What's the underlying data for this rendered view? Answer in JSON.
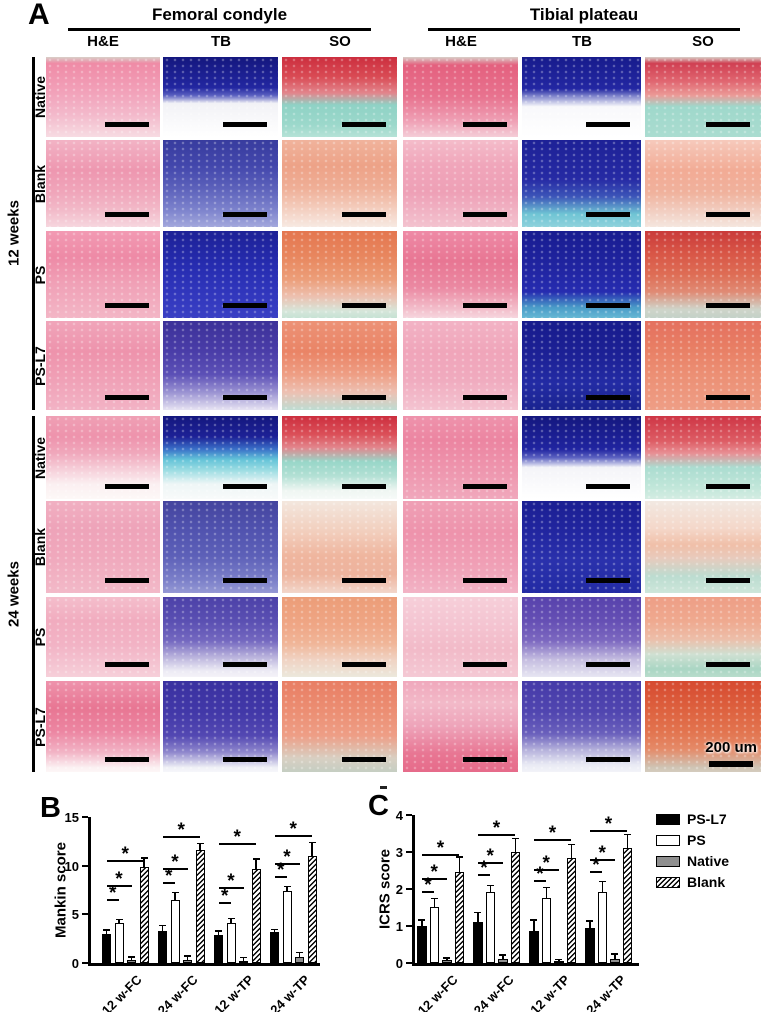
{
  "panel_a": {
    "label": "A",
    "region_headers": [
      {
        "label": "Femoral condyle"
      },
      {
        "label": "Tibial plateau"
      }
    ],
    "stain_headers": [
      "H&E",
      "TB",
      "SO",
      "H&E",
      "TB",
      "SO"
    ],
    "time_groups": [
      {
        "label": "12 weeks",
        "rows": [
          "Native",
          "Blank",
          "PS",
          "PS-L7"
        ]
      },
      {
        "label": "24 weeks",
        "rows": [
          "Native",
          "Blank",
          "PS",
          "PS-L7"
        ]
      }
    ],
    "scale_bar_label": "200 um",
    "tile_row_keys": [
      "12w-native",
      "12w-blank",
      "12w-ps",
      "12w-psl7",
      "24w-native",
      "24w-blank",
      "24w-ps",
      "24w-psl7"
    ],
    "tile_col_keys": [
      "fc-he",
      "fc-tb",
      "fc-so",
      "tp-he",
      "tp-tb",
      "tp-so"
    ],
    "tiles": [
      [
        "#d8cfc8 0%, #ef8ba6 8%, #f2a2ba 45%, #f3b9cb 72%, #f7dbe2 100%",
        "#14177e 0%, #2226a0 38%, #5a60c0 48%, #f2f2f6 58%, #ffffff 100%",
        "#cc2e3e 0%, #d94b55 25%, #e2858c 45%, #8fd2c5 60%, #9cd8cb 85%, #b5e2d6 100%",
        "#d8cfc8 0%, #e4607e 10%, #e8738f 50%, #efa0b5 80%, #f4cdd7 100%",
        "#171b8c 0%, #2327a2 40%, #8a8fd0 50%, #f8f8fb 62%, #ffffff 100%",
        "#d8cfc8 0%, #d04052 8%, #e06570 30%, #eb9a97 48%, #9fd8cb 62%, #aadcd0 100%"
      ],
      [
        "#f2b3c5 0%, #ee97b0 35%, #f0a5ba 60%, #f2b9c8 80%, #f6d6de 100%",
        "#383c9e 0%, #4347ac 30%, #5b60ba 55%, #7c82cc 80%, #a3a8dc 100%",
        "#f0b39c 0%, #eda287 30%, #efae96 55%, #f4cfc0 80%, #f7e9e2 100%",
        "#f4bcca 0%, #f0a5ba 30%, #eea0b6 60%, #f3c2cf 100%",
        "#1d2196 0%, #262aa4 45%, #3c55b8 65%, #6fc4d4 85%, #8fd2dc 100%",
        "#f6cabc 0%, #f2ab95 35%, #f0b19c 60%, #f2d2c6 85%, #f5e6de 100%"
      ],
      [
        "#f29ab3 0%, #ee8aa6 30%, #f0a0b6 60%, #f3b6c6 100%",
        "#1d2196 0%, #262cb0 40%, #3036bc 70%, #3a40c4 100%",
        "#e4764f 0%, #e8875f 30%, #ec9d78 55%, #edbfae 75%, #d6e6da 92%, #c6e2d4 100%",
        "#ee8aa6 0%, #e87693 35%, #eb89a2 65%, #f2bac8 88%, #f6d6de 100%",
        "#181c90 0%, #2125a2 45%, #262cb0 70%, #4a9cc8 88%, #66b8d4 100%",
        "#c93a3a 0%, #d85546 25%, #de6d55 50%, #e08a74 70%, #cfd4c9 90%, #c4d2c8 100%"
      ],
      [
        "#f0a5ba 0%, #ee93ac 35%, #f0a0b6 65%, #f2b3c5 100%",
        "#3c3199 0%, #4a3da8 35%, #5c50b6 60%, #9a92d2 80%, #e6e2f2 100%",
        "#ec9276 0%, #ea8466 35%, #ee9e84 60%, #edc0b2 80%, #bedcd2 100%",
        "#f2b3c5 0%, #f0a5ba 35%, #f0aabe 65%, #f4c4d1 100%",
        "#171b8c 0%, #1d2196 40%, #232ba4 70%, #1a2490 100%",
        "#e4705f 0%, #e87e64 30%, #ec8f74 60%, #ee9e86 100%"
      ],
      [
        "#efa0b5 0%, #ee93ac 25%, #f0a8bc 45%, #f6d0da 65%, #fbeff1 82%, #fdf8f7 100%",
        "#14177e 0%, #1d2196 25%, #3a70c8 40%, #62c2d8 52%, #9adce2 65%, #eef6f6 82%, #f8fafa 100%",
        "#cc2e3e 0%, #db4f58 22%, #e2858c 38%, #98d6c8 55%, #b2e0d4 72%, #eff6f2 90%, #f6faf8 100%",
        "#ee93ac 0%, #ec85a1 30%, #ee93ac 60%, #f0a8bc 100%",
        "#14177e 0%, #2024a0 40%, #5a60c0 50%, #f4f4f8 62%, #ffffff 100%",
        "#ce3545 0%, #dd5c64 30%, #e88f94 45%, #abdcd0 62%, #c0e6d9 85%, #d4ece2 100%"
      ],
      [
        "#f1b0c2 0%, #eea3b9 30%, #f0a8bc 60%, #f2b9c8 100%",
        "#44449e 0%, #5052ae 30%, #5d60b8 60%, #7a7ec8 85%, #9598d4 100%",
        "#f3e7de 0%, #f2cdbb 35%, #efb59e 60%, #eeb49e 80%, #f2d6ca 100%",
        "#efa0b5 0%, #ee93ac 35%, #f0a0b6 70%, #f2b3c5 100%",
        "#1b1f92 0%, #2226a0 35%, #2a31ac 65%, #232ba4 100%",
        "#f2e9e2 0%, #f4d7c9 30%, #f0bfa8 48%, #e8cabc 62%, #bcdcd0 82%, #cde6da 100%"
      ],
      [
        "#f4becc 0%, #f1acbf 30%, #f2b3c5 60%, #f6cfd9 100%",
        "#4c41a8 0%, #5a4fb2 30%, #7468c0 55%, #b9b2dc 75%, #eceaf4 92%, #f4f2f8 100%",
        "#ec9d78 0%, #efa685 35%, #f0b598 58%, #f0d2c2 78%, #ece8dc 100%",
        "#f6cfd9 0%, #f4c4d1 35%, #f2bac8 65%, #f4c9d4 100%",
        "#5742ac 0%, #654fb4 30%, #7c68c0 55%, #c4bce0 78%, #e7e6f2 100%",
        "#ee9e86 0%, #efa98f 30%, #edbda8 52%, #cfe0d2 72%, #aad6c4 90%, #b8dccb 100%"
      ],
      [
        "#ee93ac 0%, #e87693 30%, #ec85a1 55%, #f2b3c5 78%, #fbf0f2 95%, #fdf6f6 100%",
        "#3a31a0 0%, #4238a8 35%, #5348b2 60%, #8e86cc 78%, #eff0f6 95%, #f6f6fa 100%",
        "#e87e64 0%, #ec8f74 35%, #ee9e86 60%, #d8cfc2 85%, #c5cec2 100%",
        "#f0a8bc 0%, #f2b9c8 25%, #eea3b9 50%, #e87693 80%, #e66b8a 100%",
        "#453aa8 0%, #5146b0 35%, #6a60bc 58%, #b2aeda 75%, #e9eaf4 92%, #f2f3f8 100%",
        "#d64a30 0%, #dd603e 30%, #e2734e 55%, #e58a68 75%, #cfc4b4 95%, #d5ccbe 100%"
      ]
    ]
  },
  "sig_label": "*",
  "chart_data": [
    {
      "type": "bar",
      "panel_label": "B",
      "ylabel": "Mankin score",
      "ylim": [
        0,
        15
      ],
      "yticks": [
        0,
        5,
        10,
        15
      ],
      "categories": [
        "12 w-FC",
        "24 w-FC",
        "12 w-TP",
        "24 w-TP"
      ],
      "legend_position": "outside-right",
      "grid": false,
      "series": [
        {
          "name": "PS-L7",
          "fill": "black",
          "values": [
            3.0,
            3.3,
            2.9,
            3.2
          ],
          "errors": [
            0.3,
            0.5,
            0.3,
            0.2
          ]
        },
        {
          "name": "PS",
          "fill": "white",
          "values": [
            4.1,
            6.5,
            4.1,
            7.4
          ],
          "errors": [
            0.3,
            0.7,
            0.4,
            0.4
          ]
        },
        {
          "name": "Native",
          "fill": "gray",
          "values": [
            0.3,
            0.35,
            0.25,
            0.6
          ],
          "errors": [
            0.25,
            0.3,
            0.25,
            0.4
          ]
        },
        {
          "name": "Blank",
          "fill": "hatch",
          "values": [
            9.9,
            11.6,
            9.7,
            11.0
          ],
          "errors": [
            0.8,
            0.6,
            0.9,
            1.3
          ]
        }
      ],
      "sig_brackets": [
        [
          [
            0,
            1,
            6.6
          ],
          [
            0,
            2,
            8.0
          ],
          [
            0,
            3,
            10.6
          ]
        ],
        [
          [
            0,
            1,
            8.3
          ],
          [
            0,
            2,
            9.8
          ],
          [
            0,
            3,
            13.0
          ]
        ],
        [
          [
            0,
            1,
            6.3
          ],
          [
            0,
            2,
            7.8
          ],
          [
            0,
            3,
            12.3
          ]
        ],
        [
          [
            0,
            1,
            8.9
          ],
          [
            0,
            2,
            10.3
          ],
          [
            0,
            3,
            13.2
          ]
        ]
      ]
    },
    {
      "type": "bar",
      "panel_label": "C",
      "ylabel": "ICRS score",
      "ylim": [
        0,
        4
      ],
      "yticks": [
        0,
        1,
        2,
        3,
        4
      ],
      "categories": [
        "12 w-FC",
        "24 w-FC",
        "12 w-TP",
        "24 w-TP"
      ],
      "legend_position": "outside-right",
      "grid": false,
      "series": [
        {
          "name": "PS-L7",
          "fill": "black",
          "values": [
            1.0,
            1.1,
            0.87,
            0.95
          ],
          "errors": [
            0.15,
            0.25,
            0.28,
            0.17
          ]
        },
        {
          "name": "PS",
          "fill": "white",
          "values": [
            1.52,
            1.93,
            1.77,
            1.93
          ],
          "errors": [
            0.2,
            0.15,
            0.25,
            0.25
          ]
        },
        {
          "name": "Native",
          "fill": "gray",
          "values": [
            0.07,
            0.12,
            0.05,
            0.12
          ],
          "errors": [
            0.05,
            0.08,
            0.03,
            0.1
          ]
        },
        {
          "name": "Blank",
          "fill": "hatch",
          "values": [
            2.45,
            3.0,
            2.83,
            3.1
          ],
          "errors": [
            0.4,
            0.35,
            0.35,
            0.35
          ]
        }
      ],
      "sig_brackets": [
        [
          [
            0,
            1,
            1.95
          ],
          [
            0,
            2,
            2.3
          ],
          [
            0,
            3,
            2.95
          ]
        ],
        [
          [
            0,
            1,
            2.4
          ],
          [
            0,
            2,
            2.72
          ],
          [
            0,
            3,
            3.5
          ]
        ],
        [
          [
            0,
            1,
            2.25
          ],
          [
            0,
            2,
            2.55
          ],
          [
            0,
            3,
            3.35
          ]
        ],
        [
          [
            0,
            1,
            2.5
          ],
          [
            0,
            2,
            2.8
          ],
          [
            0,
            3,
            3.6
          ]
        ]
      ]
    }
  ],
  "legend": {
    "items": [
      {
        "label": "PS-L7",
        "fill": "black"
      },
      {
        "label": "PS",
        "fill": "white"
      },
      {
        "label": "Native",
        "fill": "gray"
      },
      {
        "label": "Blank",
        "fill": "hatch"
      }
    ]
  },
  "colors": {
    "bar_black": "#000000",
    "bar_white": "#ffffff",
    "bar_gray": "#8f8f8f",
    "text": "#000000"
  }
}
